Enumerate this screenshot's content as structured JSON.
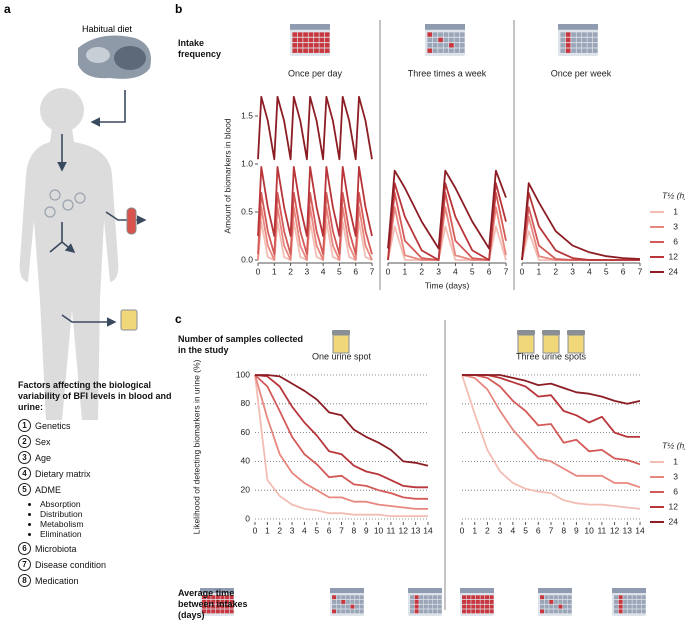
{
  "panel_a": {
    "panel_label": "a",
    "diet_label": "Habitual diet",
    "factors_title": "Factors affecting the biological variability of BFI levels in blood and urine:",
    "factors": [
      {
        "number": 1,
        "label": "Genetics"
      },
      {
        "number": 2,
        "label": "Sex"
      },
      {
        "number": 3,
        "label": "Age"
      },
      {
        "number": 4,
        "label": "Dietary matrix"
      },
      {
        "number": 5,
        "label": "ADME",
        "sub": [
          "Absorption",
          "Distribution",
          "Metabolism",
          "Elimination"
        ]
      },
      {
        "number": 6,
        "label": "Microbiota"
      },
      {
        "number": 7,
        "label": "Disease condition"
      },
      {
        "number": 8,
        "label": "Medication"
      }
    ]
  },
  "chart_data": [
    {
      "type": "line",
      "panel_label": "b",
      "row_label": "Intake frequency",
      "subtitle": "Once per day",
      "ylabel": "Amount of biomarkers in blood",
      "xlim": [
        0,
        7
      ],
      "xticks": [
        0,
        1,
        2,
        3,
        4,
        5,
        6,
        7
      ],
      "ylim": [
        0,
        1.75
      ],
      "yticks": [
        {
          "value": 0,
          "label": "0.0"
        },
        0.5,
        {
          "value": 1,
          "label": "1.0"
        },
        1.5
      ],
      "x": [
        0,
        0.2,
        0.6,
        1,
        1.2,
        1.6,
        2,
        2.2,
        2.6,
        3,
        3.2,
        3.6,
        4,
        4.2,
        4.6,
        5,
        5.2,
        5.6,
        6,
        6.2,
        6.6,
        7
      ],
      "series": [
        {
          "color": "#f3bdb4",
          "values": [
            0,
            0.4,
            0.03,
            0,
            0.4,
            0.03,
            0,
            0.4,
            0.03,
            0,
            0.4,
            0.03,
            0,
            0.4,
            0.03,
            0,
            0.4,
            0.03,
            0,
            0.4,
            0.03,
            0
          ]
        },
        {
          "color": "#e8877f",
          "values": [
            0,
            0.55,
            0.15,
            0,
            0.55,
            0.15,
            0,
            0.55,
            0.15,
            0,
            0.55,
            0.15,
            0,
            0.55,
            0.15,
            0,
            0.55,
            0.15,
            0,
            0.55,
            0.15,
            0
          ]
        },
        {
          "color": "#d45a58",
          "values": [
            0.06,
            0.7,
            0.3,
            0.06,
            0.7,
            0.3,
            0.06,
            0.7,
            0.3,
            0.06,
            0.7,
            0.3,
            0.06,
            0.7,
            0.3,
            0.06,
            0.7,
            0.3,
            0.06,
            0.7,
            0.3,
            0.06
          ]
        },
        {
          "color": "#b8353a",
          "values": [
            0.25,
            0.97,
            0.55,
            0.25,
            0.97,
            0.55,
            0.25,
            0.97,
            0.55,
            0.25,
            0.97,
            0.55,
            0.25,
            0.97,
            0.55,
            0.25,
            0.97,
            0.55,
            0.25,
            0.97,
            0.55,
            0.25
          ]
        },
        {
          "color": "#8c1d24",
          "values": [
            1.05,
            1.7,
            1.45,
            1.05,
            1.7,
            1.45,
            1.05,
            1.7,
            1.45,
            1.05,
            1.7,
            1.45,
            1.05,
            1.7,
            1.45,
            1.05,
            1.7,
            1.45,
            1.05,
            1.7,
            1.45,
            1.05
          ]
        }
      ]
    },
    {
      "type": "line",
      "subtitle": "Three times a week",
      "xlabel": "Time (days)",
      "xlim": [
        0,
        7
      ],
      "xticks": [
        0,
        1,
        2,
        3,
        4,
        5,
        6,
        7
      ],
      "ylim": [
        0,
        1.75
      ],
      "x": [
        0,
        0.4,
        1,
        2,
        3,
        3.4,
        4,
        5,
        6,
        6.4,
        7
      ],
      "series": [
        {
          "color": "#f3bdb4",
          "values": [
            0,
            0.35,
            0,
            0,
            0,
            0.35,
            0,
            0,
            0,
            0.35,
            0
          ]
        },
        {
          "color": "#e8877f",
          "values": [
            0,
            0.55,
            0.05,
            0,
            0,
            0.55,
            0.05,
            0,
            0,
            0.55,
            0.05
          ]
        },
        {
          "color": "#d45a58",
          "values": [
            0,
            0.7,
            0.2,
            0.02,
            0,
            0.7,
            0.2,
            0.02,
            0,
            0.7,
            0.2
          ]
        },
        {
          "color": "#b8353a",
          "values": [
            0,
            0.8,
            0.45,
            0.1,
            0,
            0.8,
            0.45,
            0.1,
            0,
            0.8,
            0.4
          ]
        },
        {
          "color": "#8c1d24",
          "values": [
            0.12,
            0.93,
            0.75,
            0.4,
            0.12,
            0.93,
            0.75,
            0.4,
            0.12,
            0.93,
            0.65
          ]
        }
      ]
    },
    {
      "type": "line",
      "subtitle": "Once per week",
      "xlim": [
        0,
        7
      ],
      "xticks": [
        0,
        1,
        2,
        3,
        4,
        5,
        6,
        7
      ],
      "ylim": [
        0,
        1.75
      ],
      "legend": true,
      "legend_title": "T½ (h)",
      "x": [
        0,
        0.4,
        1,
        2,
        3,
        4,
        5,
        6,
        7
      ],
      "series": [
        {
          "name": "1",
          "color": "#f3bdb4",
          "values": [
            0,
            0.3,
            0,
            0,
            0,
            0,
            0,
            0,
            0
          ]
        },
        {
          "name": "3",
          "color": "#e8877f",
          "values": [
            0,
            0.45,
            0.04,
            0,
            0,
            0,
            0,
            0,
            0
          ]
        },
        {
          "name": "6",
          "color": "#d45a58",
          "values": [
            0,
            0.55,
            0.15,
            0.01,
            0,
            0,
            0,
            0,
            0
          ]
        },
        {
          "name": "12",
          "color": "#b8353a",
          "values": [
            0,
            0.7,
            0.35,
            0.1,
            0.02,
            0,
            0,
            0,
            0
          ]
        },
        {
          "name": "24",
          "color": "#8c1d24",
          "values": [
            0,
            0.8,
            0.6,
            0.3,
            0.15,
            0.08,
            0.04,
            0.02,
            0.01
          ]
        }
      ]
    },
    {
      "type": "line",
      "panel_label": "c",
      "row_label": "Number of samples collected in the study",
      "subtitle": "One urine spot",
      "ylabel": "Likelihood of detecting biomarkers in urine (%)",
      "footer_label": "Average time between intakes (days)",
      "grid": true,
      "xlim": [
        0,
        14
      ],
      "xticks": [
        0,
        1,
        2,
        3,
        4,
        5,
        6,
        7,
        8,
        9,
        10,
        11,
        12,
        13,
        14
      ],
      "ylim": [
        0,
        100
      ],
      "yticks": [
        0,
        20,
        40,
        60,
        80,
        100
      ],
      "x": [
        0,
        1,
        2,
        3,
        4,
        5,
        6,
        7,
        8,
        9,
        10,
        11,
        12,
        13,
        14
      ],
      "series": [
        {
          "color": "#f3bdb4",
          "values": [
            100,
            27,
            16,
            10,
            7,
            6,
            4,
            4,
            3,
            3,
            3,
            2,
            2,
            2,
            2
          ]
        },
        {
          "color": "#e8877f",
          "values": [
            100,
            70,
            45,
            32,
            25,
            20,
            15,
            15,
            12,
            12,
            10,
            9,
            8,
            7,
            7
          ]
        },
        {
          "color": "#d45a58",
          "values": [
            100,
            92,
            75,
            57,
            45,
            38,
            29,
            30,
            24,
            23,
            20,
            18,
            15,
            14,
            14
          ]
        },
        {
          "color": "#b8353a",
          "values": [
            100,
            99,
            92,
            78,
            67,
            58,
            47,
            45,
            37,
            33,
            31,
            27,
            23,
            22,
            22
          ]
        },
        {
          "color": "#8c1d24",
          "values": [
            100,
            100,
            99,
            94,
            89,
            83,
            74,
            72,
            62,
            57,
            53,
            48,
            40,
            39,
            37
          ]
        }
      ]
    },
    {
      "type": "line",
      "subtitle": "Three urine spots",
      "grid": true,
      "show_ytick_labels": false,
      "legend": true,
      "legend_title": "T½ (h)",
      "xlim": [
        0,
        14
      ],
      "xticks": [
        0,
        1,
        2,
        3,
        4,
        5,
        6,
        7,
        8,
        9,
        10,
        11,
        12,
        13,
        14
      ],
      "ylim": [
        0,
        100
      ],
      "yticks": [
        0,
        20,
        40,
        60,
        80,
        100
      ],
      "x": [
        0,
        1,
        2,
        3,
        4,
        5,
        6,
        7,
        8,
        9,
        10,
        11,
        12,
        13,
        14
      ],
      "series": [
        {
          "name": "1",
          "color": "#f3bdb4",
          "values": [
            100,
            73,
            48,
            33,
            25,
            21,
            19,
            18,
            13,
            11,
            10,
            10,
            9,
            8,
            7
          ]
        },
        {
          "name": "3",
          "color": "#e8877f",
          "values": [
            100,
            98,
            90,
            75,
            62,
            52,
            42,
            40,
            35,
            30,
            30,
            30,
            25,
            25,
            22
          ]
        },
        {
          "name": "6",
          "color": "#d45a58",
          "values": [
            100,
            100,
            98,
            92,
            82,
            75,
            65,
            66,
            53,
            55,
            47,
            48,
            42,
            41,
            38
          ]
        },
        {
          "name": "12",
          "color": "#b8353a",
          "values": [
            100,
            100,
            100,
            98,
            95,
            92,
            85,
            86,
            75,
            72,
            67,
            71,
            60,
            57,
            57
          ]
        },
        {
          "name": "24",
          "color": "#8c1d24",
          "values": [
            100,
            100,
            100,
            100,
            98,
            96,
            93,
            94,
            91,
            88,
            87,
            85,
            82,
            80,
            82
          ]
        }
      ]
    }
  ]
}
